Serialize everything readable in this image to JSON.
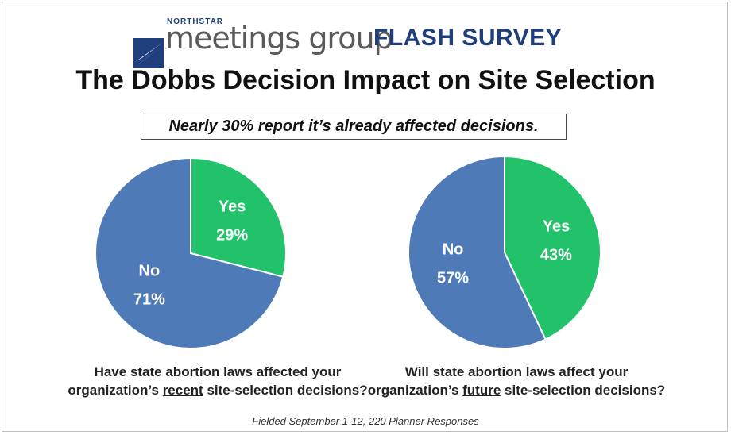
{
  "brand": {
    "northstar": "NORTHSTAR",
    "name": "meetings group",
    "flash": "FLASH SURVEY",
    "logo_icon": "star-swoosh-icon"
  },
  "title": "The Dobbs Decision Impact on Site Selection",
  "subtitle": "Nearly 30% report it’s already affected decisions.",
  "colors": {
    "yes": "#22c26b",
    "no": "#4f7ab8"
  },
  "chart_data": [
    {
      "type": "pie",
      "slices": [
        {
          "label": "Yes",
          "value": 29,
          "display": "29%"
        },
        {
          "label": "No",
          "value": 71,
          "display": "71%"
        }
      ],
      "question": {
        "line1": "Have state abortion laws affected your",
        "prefix": "organization’s ",
        "emphasis": "recent",
        "suffix": " site-selection decisions?"
      }
    },
    {
      "type": "pie",
      "slices": [
        {
          "label": "Yes",
          "value": 43,
          "display": "43%"
        },
        {
          "label": "No",
          "value": 57,
          "display": "57%"
        }
      ],
      "question": {
        "line1": "Will state abortion laws affect your",
        "prefix": "organization’s ",
        "emphasis": "future",
        "suffix": " site-selection decisions?"
      }
    }
  ],
  "footer": "Fielded September 1-12, 220 Planner Responses"
}
